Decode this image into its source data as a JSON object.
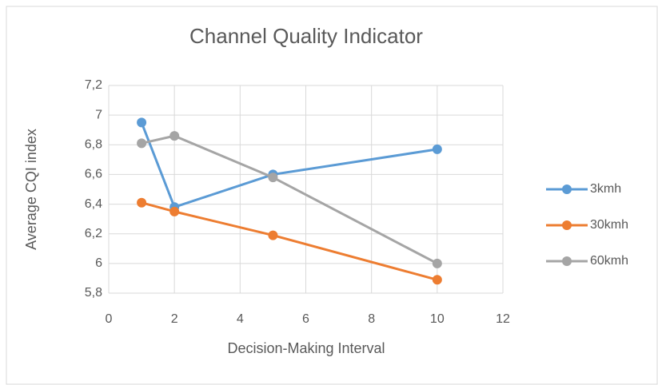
{
  "chart_data": {
    "type": "line",
    "title": "Channel Quality Indicator",
    "xlabel": "Decision-Making Interval",
    "ylabel": "Average CQI index",
    "x": [
      1,
      2,
      5,
      10
    ],
    "series": [
      {
        "name": "3kmh",
        "color": "#5b9bd5",
        "values": [
          6.95,
          6.38,
          6.6,
          6.77
        ]
      },
      {
        "name": "30kmh",
        "color": "#ed7d31",
        "values": [
          6.41,
          6.35,
          6.19,
          5.89
        ]
      },
      {
        "name": "60kmh",
        "color": "#a5a5a5",
        "values": [
          6.81,
          6.86,
          6.58,
          6.0
        ]
      }
    ],
    "xlim": [
      0,
      12
    ],
    "xticks": [
      0,
      2,
      4,
      6,
      8,
      10,
      12
    ],
    "ylim": [
      5.8,
      7.2
    ],
    "yticks": [
      {
        "value": 5.8,
        "label": "5,8"
      },
      6,
      {
        "value": 6.2,
        "label": "6,2"
      },
      {
        "value": 6.4,
        "label": "6,4"
      },
      {
        "value": 6.6,
        "label": "6,6"
      },
      {
        "value": 6.8,
        "label": "6,8"
      },
      7,
      {
        "value": 7.2,
        "label": "7,2"
      }
    ],
    "grid": true,
    "legend": "right"
  }
}
